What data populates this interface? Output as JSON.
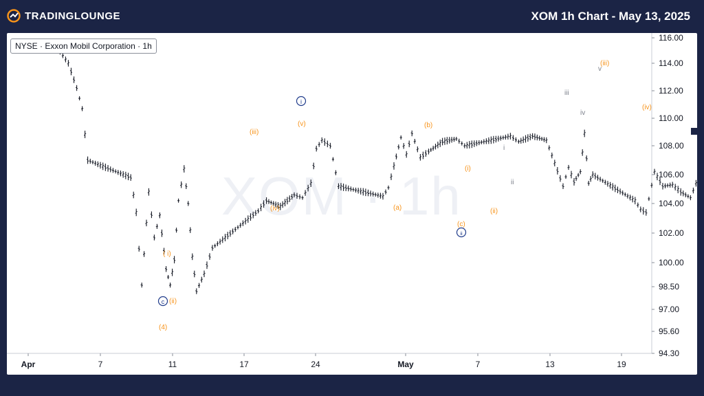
{
  "header": {
    "logo_text": "TRADINGLOUNGE",
    "title": "XOM 1h Chart - May 13, 2025"
  },
  "chart_data": {
    "type": "line",
    "legend": "NYSE · Exxon Mobil Corporation · 1h",
    "watermark": "XOM · 1h",
    "y_ticks": [
      "116.00",
      "114.00",
      "112.00",
      "110.00",
      "108.00",
      "106.00",
      "104.00",
      "102.00",
      "100.00",
      "98.50",
      "97.00",
      "95.60",
      "94.30"
    ],
    "x_ticks": [
      "Apr",
      "7",
      "11",
      "17",
      "24",
      "May",
      "7",
      "13",
      "19"
    ],
    "colors": {
      "price": "#131722",
      "wave_orange": "#f7931a",
      "wave_blue": "#1e3a8a",
      "wave_gray": "#7a7f8a",
      "background": "#1b2445"
    },
    "price_path": [
      [
        "Apr 3",
        114.9
      ],
      [
        "Apr 3",
        114.0
      ],
      [
        "Apr 4",
        112.2
      ],
      [
        "Apr 4",
        110.7
      ],
      [
        "Apr 4",
        107.0
      ],
      [
        "Apr 7",
        105.8
      ],
      [
        "Apr 7",
        103.4
      ],
      [
        "Apr 7",
        98.6
      ],
      [
        "Apr 8",
        104.8
      ],
      [
        "Apr 8",
        101.7
      ],
      [
        "Apr 8",
        103.2
      ],
      [
        "Apr 9",
        99.6
      ],
      [
        "Apr 9",
        98.6
      ],
      [
        "Apr 9",
        100.2
      ],
      [
        "Apr 9",
        104.2
      ],
      [
        "Apr 10",
        106.4
      ],
      [
        "Apr 10",
        104.0
      ],
      [
        "Apr 10",
        100.4
      ],
      [
        "Apr 10",
        98.2
      ],
      [
        "Apr 11",
        99.3
      ],
      [
        "Apr 11",
        101.0
      ],
      [
        "Apr 14",
        103.5
      ],
      [
        "Apr 14",
        104.2
      ],
      [
        "Apr 15",
        103.8
      ],
      [
        "Apr 16",
        104.6
      ],
      [
        "Apr 16",
        104.4
      ],
      [
        "Apr 17",
        105.4
      ],
      [
        "Apr 17",
        107.8
      ],
      [
        "Apr 17",
        108.4
      ],
      [
        "Apr 18",
        108.0
      ],
      [
        "Apr 18",
        105.2
      ],
      [
        "Apr 21",
        104.5
      ],
      [
        "Apr 21",
        105.1
      ],
      [
        "Apr 21",
        106.6
      ],
      [
        "Apr 22",
        108.6
      ],
      [
        "Apr 22",
        107.4
      ],
      [
        "Apr 22",
        108.9
      ],
      [
        "Apr 23",
        107.2
      ],
      [
        "Apr 23",
        107.6
      ],
      [
        "Apr 24",
        108.3
      ],
      [
        "Apr 25",
        108.5
      ],
      [
        "Apr 25",
        108.0
      ],
      [
        "Apr 28",
        108.7
      ],
      [
        "Apr 28",
        108.3
      ],
      [
        "Apr 29",
        108.7
      ],
      [
        "Apr 30",
        108.4
      ],
      [
        "Apr 30",
        106.8
      ],
      [
        "May 1",
        105.2
      ],
      [
        "May 1",
        106.5
      ],
      [
        "May 1",
        105.5
      ],
      [
        "May 2",
        106.2
      ],
      [
        "May 2",
        108.9
      ],
      [
        "May 2",
        105.4
      ],
      [
        "May 2",
        106.0
      ],
      [
        "May 5",
        104.2
      ],
      [
        "May 5",
        103.6
      ],
      [
        "May 5",
        103.4
      ],
      [
        "May 6",
        106.2
      ],
      [
        "May 6",
        105.2
      ],
      [
        "May 7",
        105.3
      ],
      [
        "May 7",
        104.8
      ],
      [
        "May 8",
        104.4
      ],
      [
        "May 8",
        105.9
      ],
      [
        "May 9",
        106.8
      ],
      [
        "May 9",
        107.2
      ],
      [
        "May 9",
        106.5
      ],
      [
        "May 12",
        107.0
      ],
      [
        "May 12",
        107.6
      ],
      [
        "May 12",
        109.9
      ],
      [
        "May 12",
        108.8
      ],
      [
        "May 13",
        109.2
      ]
    ],
    "wave_labels": [
      {
        "text": "ⓘ",
        "color": "blue"
      },
      {
        "text": "ⓒ",
        "color": "blue"
      },
      {
        "text": "ⓘⓘ",
        "color": "blue"
      },
      {
        "text": "(iii)",
        "color": "orange"
      },
      {
        "text": "(v)",
        "color": "orange"
      },
      {
        "text": "(b)",
        "color": "orange"
      },
      {
        "text": "(iv)",
        "color": "orange"
      },
      {
        "text": "(a)",
        "color": "orange"
      },
      {
        "text": "(c)",
        "color": "orange"
      },
      {
        "text": "(i)",
        "color": "orange"
      },
      {
        "text": "(ii)",
        "color": "orange"
      },
      {
        "text": "(4)",
        "color": "orange"
      },
      {
        "text": "(iii)",
        "color": "orange"
      },
      {
        "text": "(iv)",
        "color": "orange"
      },
      {
        "text": "i",
        "color": "gray"
      },
      {
        "text": "ii",
        "color": "gray"
      },
      {
        "text": "iii",
        "color": "gray"
      },
      {
        "text": "iv",
        "color": "gray"
      },
      {
        "text": "v",
        "color": "gray"
      },
      {
        "text": "( i)",
        "color": "orange"
      },
      {
        "text": "(ii)",
        "color": "orange"
      }
    ]
  }
}
